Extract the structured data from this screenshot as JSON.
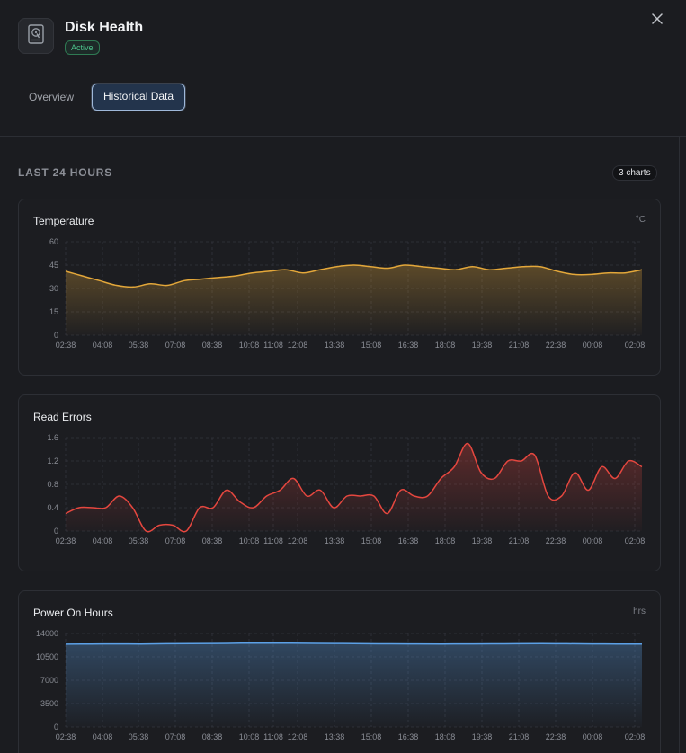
{
  "app": {
    "title": "Disk Health",
    "status": "Active"
  },
  "tabs": [
    {
      "label": "Overview"
    },
    {
      "label": "Historical Data"
    }
  ],
  "section": {
    "label": "LAST 24 HOURS",
    "count_badge": "3 charts"
  },
  "colors": {
    "temperature": "#e3a73a",
    "read_errors": "#e5473f",
    "power_on_hours": "#5ca0e6",
    "active_badge": "#4cc08a"
  },
  "icons": {
    "disk": "hard-drive-icon",
    "close": "close-icon"
  },
  "chart_data": [
    {
      "type": "area",
      "title": "Temperature",
      "unit": "°C",
      "ylim": [
        0,
        60
      ],
      "yticks": [
        "60",
        "45",
        "30",
        "15",
        "0"
      ],
      "xticks": [
        "02:38",
        "04:08",
        "05:38",
        "07:08",
        "08:38",
        "10:08",
        "11:08",
        "12:08",
        "13:38",
        "15:08",
        "16:38",
        "18:08",
        "19:38",
        "21:08",
        "22:38",
        "00:08",
        "02:08"
      ],
      "grid": true,
      "series": [
        {
          "values": [
            41,
            38,
            35,
            32,
            31,
            33,
            32,
            35,
            36,
            37,
            38,
            40,
            41,
            42,
            40,
            42,
            44,
            45,
            44,
            43,
            45,
            44,
            43,
            42,
            44,
            42,
            43,
            44,
            44,
            41,
            39,
            39,
            40,
            40,
            42
          ]
        }
      ]
    },
    {
      "type": "area",
      "title": "Read Errors",
      "unit": "",
      "ylim": [
        0,
        1.6
      ],
      "yticks": [
        "1.6",
        "1.2",
        "0.8",
        "0.4",
        "0"
      ],
      "xticks": [
        "02:38",
        "04:08",
        "05:38",
        "07:08",
        "08:38",
        "10:08",
        "11:08",
        "12:08",
        "13:38",
        "15:08",
        "16:38",
        "18:08",
        "19:38",
        "21:08",
        "22:38",
        "00:08",
        "02:08"
      ],
      "grid": true,
      "series": [
        {
          "values": [
            0.3,
            0.4,
            0.4,
            0.4,
            0.6,
            0.4,
            0.0,
            0.1,
            0.1,
            0.0,
            0.4,
            0.4,
            0.7,
            0.5,
            0.4,
            0.6,
            0.7,
            0.9,
            0.6,
            0.7,
            0.4,
            0.6,
            0.6,
            0.6,
            0.3,
            0.7,
            0.6,
            0.6,
            0.9,
            1.1,
            1.5,
            1.0,
            0.9,
            1.2,
            1.2,
            1.3,
            0.6,
            0.6,
            1.0,
            0.7,
            1.1,
            0.9,
            1.2,
            1.1
          ]
        }
      ]
    },
    {
      "type": "area",
      "title": "Power On Hours",
      "unit": "hrs",
      "ylim": [
        0,
        14000
      ],
      "yticks": [
        "14000",
        "10500",
        "7000",
        "3500",
        "0"
      ],
      "xticks": [
        "02:38",
        "04:08",
        "05:38",
        "07:08",
        "08:38",
        "10:08",
        "11:08",
        "12:08",
        "13:38",
        "15:08",
        "16:38",
        "18:08",
        "19:38",
        "21:08",
        "22:38",
        "00:08",
        "02:08"
      ],
      "grid": true,
      "series": [
        {
          "values": [
            12400,
            12420,
            12440,
            12430,
            12460,
            12480,
            12510,
            12540,
            12560,
            12550,
            12520,
            12500,
            12470,
            12450,
            12440,
            12430,
            12440,
            12450,
            12470,
            12480,
            12460,
            12440,
            12430,
            12420
          ]
        }
      ]
    }
  ]
}
